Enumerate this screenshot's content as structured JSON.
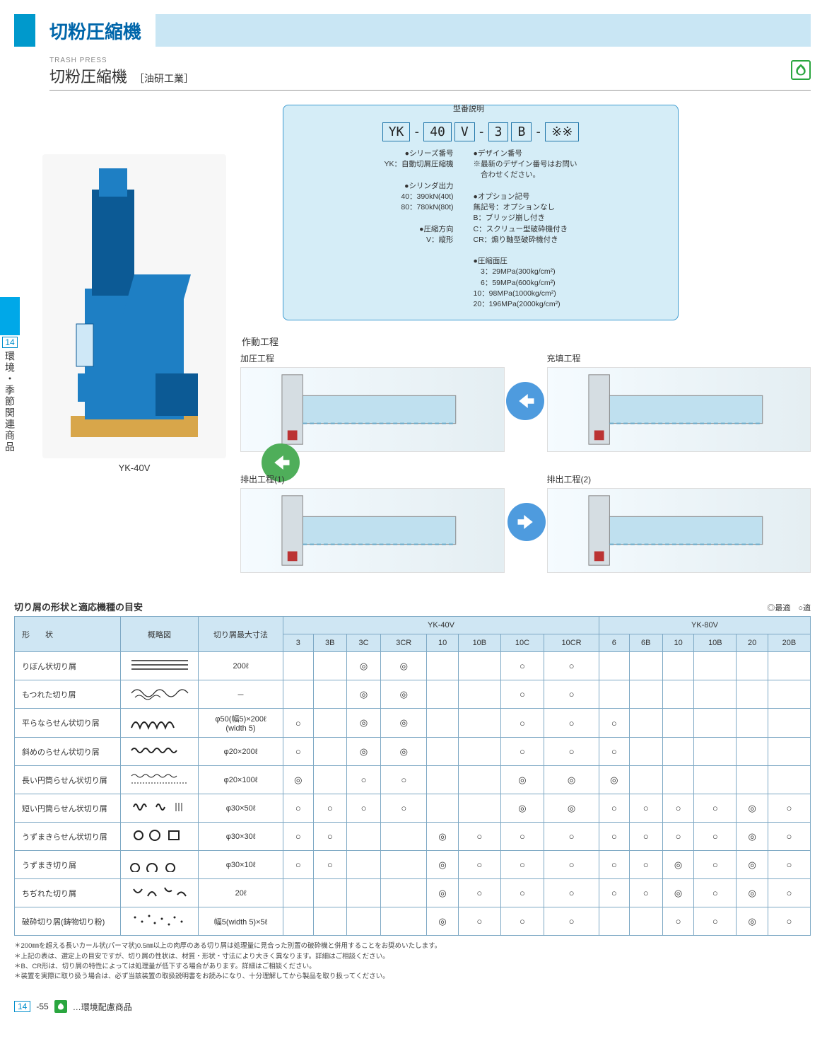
{
  "colors": {
    "accent": "#0099cc",
    "header_text": "#0066aa",
    "header_band": "#c9e6f4",
    "box_border": "#3d9bd0",
    "box_bg": "#d5edf7",
    "table_border": "#7da8c4",
    "table_head_bg": "#cfe6f3",
    "eco_green": "#2aa63f",
    "arrow_blue": "#4e9bde",
    "arrow_green": "#4fae5a",
    "machine_blue": "#1e7fc4",
    "machine_dark": "#0c5a95",
    "machine_base": "#d8a64a"
  },
  "typography": {
    "base_fontsize": 12,
    "header_fontsize": 26,
    "subheader_fontsize": 22,
    "table_fontsize": 11,
    "footnote_fontsize": 9.5
  },
  "header": {
    "title": "切粉圧縮機",
    "sub_en": "TRASH PRESS",
    "sub_jp": "切粉圧縮機",
    "sub_mfr": "［油研工業］"
  },
  "side_tab": {
    "number": "14",
    "text": "環境・季節関連商品"
  },
  "product": {
    "caption": "YK-40V"
  },
  "model_box": {
    "title": "型番説明",
    "segments": [
      "YK",
      "-",
      "40",
      "V",
      "-",
      "3",
      "B",
      "-",
      "※※"
    ],
    "left_block": {
      "series_label": "シリーズ番号",
      "series_line": "YK：自動切屑圧縮機",
      "cylinder_label": "シリンダ出力",
      "cylinder_lines": [
        "40：390kN(40t)",
        "80：780kN(80t)"
      ],
      "direction_label": "圧縮方向",
      "direction_line": "V：縦形"
    },
    "right_block": {
      "design_label": "デザイン番号",
      "design_lines": [
        "※最新のデザイン番号はお問い",
        "　合わせください。"
      ],
      "option_label": "オプション記号",
      "option_lines": [
        "無記号：オプションなし",
        "B：ブリッジ崩し付き",
        "C：スクリュー型破砕機付き",
        "CR：煽り軸型破砕機付き"
      ],
      "surface_label": "圧縮面圧",
      "surface_lines": [
        "　3：29MPa(300kg/cm²)",
        "　6：59MPa(600kg/cm²)",
        "10：98MPa(1000kg/cm²)",
        "20：196MPa(2000kg/cm²)"
      ]
    }
  },
  "process": {
    "title": "作動工程",
    "steps": [
      {
        "label": "加圧工程"
      },
      {
        "label": "充填工程"
      },
      {
        "label": "排出工程(1)"
      },
      {
        "label": "排出工程(2)"
      }
    ]
  },
  "table": {
    "title": "切り屑の形状と適応機種の目安",
    "legend": "◎最適　○適",
    "group_headers": [
      "YK-40V",
      "YK-80V"
    ],
    "shape_header": "形　　状",
    "schema_header": "概略図",
    "size_header": "切り屑最大寸法",
    "cols_40v": [
      "3",
      "3B",
      "3C",
      "3CR",
      "10",
      "10B",
      "10C",
      "10CR"
    ],
    "cols_80v": [
      "6",
      "6B",
      "10",
      "10B",
      "20",
      "20B"
    ],
    "marks": {
      "best": "◎",
      "ok": "○",
      "blank": ""
    },
    "rows": [
      {
        "shape": "りぼん状切り屑",
        "size": "200ℓ",
        "v40": [
          "",
          "",
          "◎",
          "◎",
          "",
          "",
          "○",
          "○"
        ],
        "v80": [
          "",
          "",
          "",
          "",
          "",
          ""
        ]
      },
      {
        "shape": "もつれた切り屑",
        "size": "－",
        "v40": [
          "",
          "",
          "◎",
          "◎",
          "",
          "",
          "○",
          "○"
        ],
        "v80": [
          "",
          "",
          "",
          "",
          "",
          ""
        ]
      },
      {
        "shape": "平らならせん状切り屑",
        "size": "φ50(幅5)×200ℓ\n(width 5)",
        "v40": [
          "○",
          "",
          "◎",
          "◎",
          "",
          "",
          "○",
          "○"
        ],
        "v80": [
          "○",
          "",
          "",
          "",
          "",
          ""
        ]
      },
      {
        "shape": "斜めのらせん状切り屑",
        "size": "φ20×200ℓ",
        "v40": [
          "○",
          "",
          "◎",
          "◎",
          "",
          "",
          "○",
          "○"
        ],
        "v80": [
          "○",
          "",
          "",
          "",
          "",
          ""
        ]
      },
      {
        "shape": "長い円筒らせん状切り屑",
        "size": "φ20×100ℓ",
        "v40": [
          "◎",
          "",
          "○",
          "○",
          "",
          "",
          "◎",
          "◎"
        ],
        "v80": [
          "◎",
          "",
          "",
          "",
          "",
          ""
        ]
      },
      {
        "shape": "短い円筒らせん状切り屑",
        "size": "φ30×50ℓ",
        "v40": [
          "○",
          "○",
          "○",
          "○",
          "",
          "",
          "◎",
          "◎"
        ],
        "v80": [
          "○",
          "○",
          "○",
          "○",
          "◎",
          "○"
        ]
      },
      {
        "shape": "うずまきらせん状切り屑",
        "size": "φ30×30ℓ",
        "v40": [
          "○",
          "○",
          "",
          "",
          "◎",
          "○",
          "○",
          "○"
        ],
        "v80": [
          "○",
          "○",
          "○",
          "○",
          "◎",
          "○"
        ]
      },
      {
        "shape": "うずまき切り屑",
        "size": "φ30×10ℓ",
        "v40": [
          "○",
          "○",
          "",
          "",
          "◎",
          "○",
          "○",
          "○"
        ],
        "v80": [
          "○",
          "○",
          "◎",
          "○",
          "◎",
          "○"
        ]
      },
      {
        "shape": "ちぢれた切り屑",
        "size": "20ℓ",
        "v40": [
          "",
          "",
          "",
          "",
          "◎",
          "○",
          "○",
          "○"
        ],
        "v80": [
          "○",
          "○",
          "◎",
          "○",
          "◎",
          "○"
        ]
      },
      {
        "shape": "破砕切り屑(鋳物切り粉)",
        "size": "幅5(width 5)×5ℓ",
        "v40": [
          "",
          "",
          "",
          "",
          "◎",
          "○",
          "○",
          "○"
        ],
        "v80": [
          "",
          "",
          "○",
          "○",
          "◎",
          "○"
        ]
      }
    ]
  },
  "footnotes": [
    "＊200㎜を超える長いカール状(パーマ状)0.5㎜以上の肉厚のある切り屑は処理量に見合った別置の破砕機と併用することをお奨めいたします。",
    "＊上記の表は、選定上の目安ですが、切り屑の性状は、材質・形状・寸法により大きく異なります。詳細はご相談ください。",
    "＊B、CR形は、切り屑の特性によっては処理量が低下する場合があります。詳細はご相談ください。",
    "＊装置を実際に取り扱う場合は、必ず当該装置の取扱説明書をお読みになり、十分理解してから製品を取り扱ってください。"
  ],
  "footer": {
    "section": "14",
    "page": "-55",
    "eco_text": "…環境配慮商品"
  }
}
